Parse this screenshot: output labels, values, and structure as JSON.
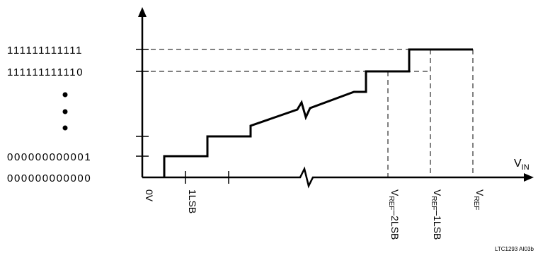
{
  "y_codes": {
    "all_ones": "111111111111",
    "ones_minus_one": "111111111110",
    "one": "000000000001",
    "zero": "000000000000",
    "ellipsis_marker": "⋮"
  },
  "x_labels": {
    "zero": "0V",
    "one_lsb": "1LSB",
    "vref_minus_2lsb_main": "V",
    "vref_minus_2lsb_sub": "REF",
    "vref_minus_2lsb_tail": "–2LSB",
    "vref_minus_1lsb_main": "V",
    "vref_minus_1lsb_sub": "REF",
    "vref_minus_1lsb_tail": "–1LSB",
    "vref_main": "V",
    "vref_sub": "REF"
  },
  "axis_label": {
    "main": "V",
    "sub": "IN"
  },
  "figure_id": "LTC1293 AI03b",
  "colors": {
    "ink": "#000000",
    "background": "#ffffff"
  }
}
